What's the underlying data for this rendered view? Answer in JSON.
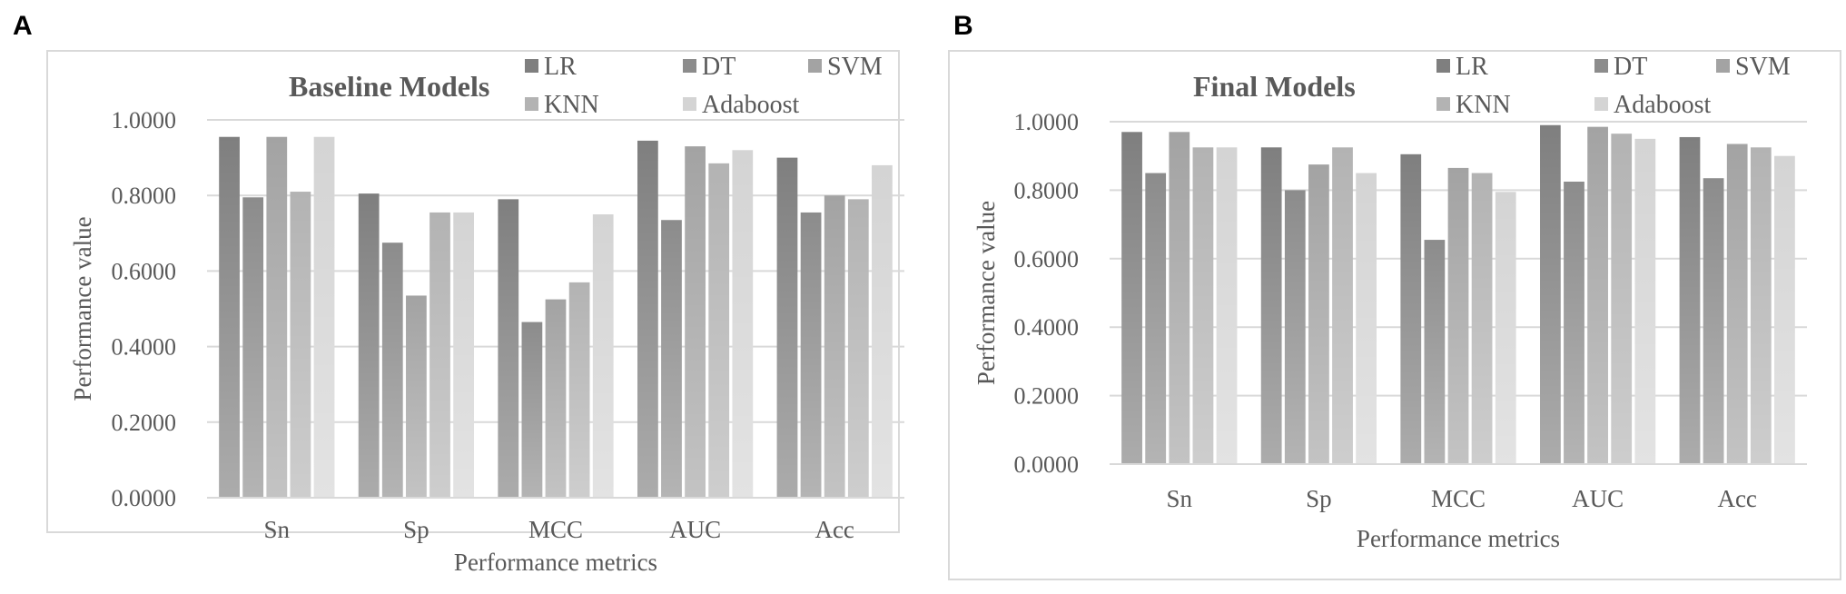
{
  "figure": {
    "panels": [
      "A",
      "B"
    ]
  },
  "chart_data": [
    {
      "panel": "A",
      "type": "bar",
      "title": "Baseline Models",
      "xlabel": "Performance metrics",
      "ylabel": "Performance value",
      "ylim": [
        0,
        1
      ],
      "yticks": [
        "0.0000",
        "0.2000",
        "0.4000",
        "0.6000",
        "0.8000",
        "1.0000"
      ],
      "grid": true,
      "legend_position": "top-right",
      "categories": [
        "Sn",
        "Sp",
        "MCC",
        "AUC",
        "Acc"
      ],
      "series": [
        {
          "name": "LR",
          "color": "#7f7f7f",
          "values": [
            0.955,
            0.805,
            0.79,
            0.945,
            0.9
          ]
        },
        {
          "name": "DT",
          "color": "#8c8c8c",
          "values": [
            0.795,
            0.675,
            0.465,
            0.735,
            0.755
          ]
        },
        {
          "name": "SVM",
          "color": "#a3a3a3",
          "values": [
            0.955,
            0.535,
            0.525,
            0.93,
            0.8
          ]
        },
        {
          "name": "KNN",
          "color": "#b3b3b3",
          "values": [
            0.81,
            0.755,
            0.57,
            0.885,
            0.79
          ]
        },
        {
          "name": "Adaboost",
          "color": "#d4d4d4",
          "values": [
            0.955,
            0.755,
            0.75,
            0.92,
            0.88
          ]
        }
      ]
    },
    {
      "panel": "B",
      "type": "bar",
      "title": "Final Models",
      "xlabel": "Performance metrics",
      "ylabel": "Performance value",
      "ylim": [
        0,
        1
      ],
      "yticks": [
        "0.0000",
        "0.2000",
        "0.4000",
        "0.6000",
        "0.8000",
        "1.0000"
      ],
      "grid": true,
      "legend_position": "top-right",
      "categories": [
        "Sn",
        "Sp",
        "MCC",
        "AUC",
        "Acc"
      ],
      "series": [
        {
          "name": "LR",
          "color": "#7f7f7f",
          "values": [
            0.97,
            0.925,
            0.905,
            0.99,
            0.955
          ]
        },
        {
          "name": "DT",
          "color": "#8c8c8c",
          "values": [
            0.85,
            0.8,
            0.655,
            0.825,
            0.835
          ]
        },
        {
          "name": "SVM",
          "color": "#a3a3a3",
          "values": [
            0.97,
            0.875,
            0.865,
            0.985,
            0.935
          ]
        },
        {
          "name": "KNN",
          "color": "#b3b3b3",
          "values": [
            0.925,
            0.925,
            0.85,
            0.965,
            0.925
          ]
        },
        {
          "name": "Adaboost",
          "color": "#d4d4d4",
          "values": [
            0.925,
            0.85,
            0.795,
            0.95,
            0.9
          ]
        }
      ]
    }
  ]
}
